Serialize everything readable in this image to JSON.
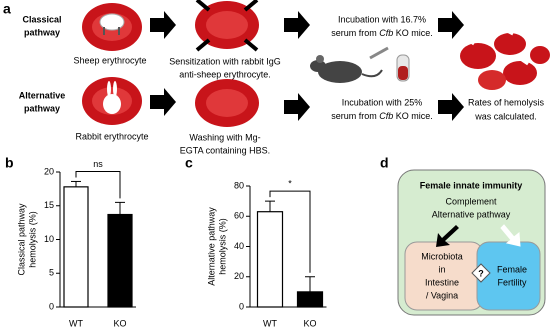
{
  "panel_a": {
    "label": "a",
    "rows": [
      {
        "name": [
          "Classical",
          "pathway"
        ],
        "step1": "Sheep erythrocyte",
        "step2": [
          "Sensitization with rabbit IgG",
          "anti-sheep erythrocyte."
        ],
        "step3": [
          [
            "Incubation with 16.7%"
          ],
          [
            "serum from ",
            "Cfb",
            " KO mice."
          ]
        ]
      },
      {
        "name": [
          "Alternative",
          "pathway"
        ],
        "step1": "Rabbit erythrocyte",
        "step2": [
          "Washing with Mg-",
          "EGTA containing HBS."
        ],
        "step3": [
          [
            "Incubation with 25%"
          ],
          [
            "serum from ",
            "Cfb",
            " KO mice."
          ]
        ],
        "step4": [
          "Rates of hemolysis",
          "was calculated."
        ]
      }
    ]
  },
  "chart_data": [
    {
      "type": "bar",
      "panel": "b",
      "ylabel": [
        "Classical pathway",
        "hemolysis (%)"
      ],
      "categories": [
        "WT",
        "KO"
      ],
      "values": [
        17.8,
        13.7
      ],
      "errors": [
        0.8,
        1.8
      ],
      "colors": [
        "#ffffff",
        "#000000"
      ],
      "ylim": [
        0,
        20
      ],
      "yticks": [
        0,
        5,
        10,
        15,
        20
      ],
      "significance": "ns"
    },
    {
      "type": "bar",
      "panel": "c",
      "ylabel": [
        "Alternative pathway",
        "hemolysis (%)"
      ],
      "categories": [
        "WT",
        "KO"
      ],
      "values": [
        63,
        10
      ],
      "errors": [
        7,
        10
      ],
      "colors": [
        "#ffffff",
        "#000000"
      ],
      "ylim": [
        0,
        80
      ],
      "yticks": [
        0,
        20,
        40,
        60,
        80
      ],
      "significance": "*"
    }
  ],
  "panel_d": {
    "label": "d",
    "title": "Female innate immunity",
    "complement": [
      "Complement",
      "Alternative pathway"
    ],
    "microbiota": [
      "Microbiota",
      "in",
      "Intestine",
      "/ Vagina"
    ],
    "question": "?",
    "fertility": [
      "Female",
      "Fertility"
    ]
  }
}
